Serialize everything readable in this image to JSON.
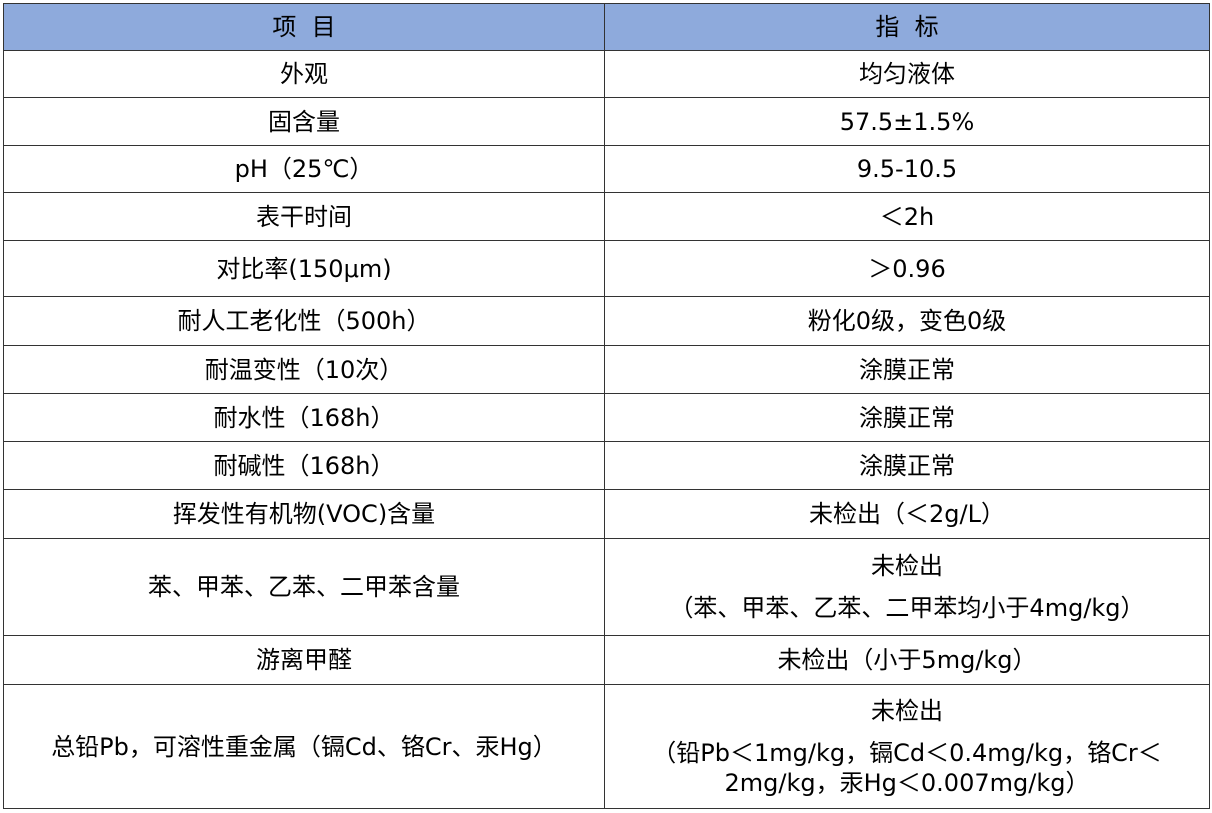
{
  "header": {
    "item": "项  目",
    "spec": "指  标"
  },
  "header_bg": "#8eaadc",
  "rows": [
    {
      "item": "外观",
      "spec": [
        "均匀液体"
      ]
    },
    {
      "item": "固含量",
      "spec": [
        "57.5±1.5%"
      ]
    },
    {
      "item": "pH（25℃）",
      "spec": [
        "9.5-10.5"
      ]
    },
    {
      "item": "表干时间",
      "spec": [
        "＜2h"
      ]
    },
    {
      "item": "对比率(150μm)",
      "spec": [
        "＞0.96"
      ]
    },
    {
      "item": "耐人工老化性（500h）",
      "spec": [
        "粉化0级，变色0级"
      ]
    },
    {
      "item": "耐温变性（10次）",
      "spec": [
        "涂膜正常"
      ]
    },
    {
      "item": "耐水性（168h）",
      "spec": [
        "涂膜正常"
      ]
    },
    {
      "item": "耐碱性（168h）",
      "spec": [
        "涂膜正常"
      ]
    },
    {
      "item": "挥发性有机物(VOC)含量",
      "spec": [
        "未检出（＜2g/L）"
      ]
    },
    {
      "item": "苯、甲苯、乙苯、二甲苯含量",
      "spec": [
        "未检出",
        "（苯、甲苯、乙苯、二甲苯均小于4mg/kg）"
      ]
    },
    {
      "item": "游离甲醛",
      "spec": [
        "未检出（小于5mg/kg）"
      ]
    },
    {
      "item": "总铅Pb，可溶性重金属（镉Cd、铬Cr、汞Hg）",
      "spec": [
        "未检出",
        "（铅Pb＜1mg/kg，镉Cd＜0.4mg/kg，铬Cr＜",
        "2mg/kg，汞Hg＜0.007mg/kg）"
      ]
    }
  ]
}
